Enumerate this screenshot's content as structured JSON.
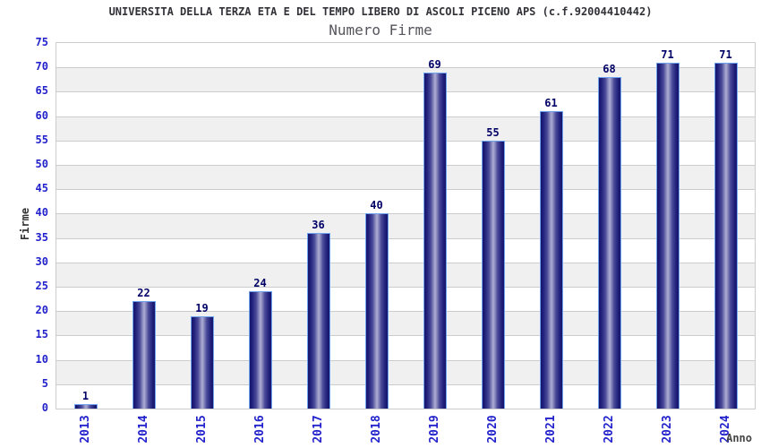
{
  "header": {
    "title": "UNIVERSITA DELLA TERZA ETA E DEL TEMPO LIBERO DI ASCOLI PICENO APS (c.f.92004410442)",
    "subtitle": "Numero Firme"
  },
  "chart_data": {
    "type": "bar",
    "title": "UNIVERSITA DELLA TERZA ETA E DEL TEMPO LIBERO DI ASCOLI PICENO APS (c.f.92004410442)",
    "subtitle": "Numero Firme",
    "xlabel": "Anno",
    "ylabel": "Firme",
    "categories": [
      "2013",
      "2014",
      "2015",
      "2016",
      "2017",
      "2018",
      "2019",
      "2020",
      "2021",
      "2022",
      "2023",
      "2024"
    ],
    "values": [
      1,
      22,
      19,
      24,
      36,
      40,
      69,
      55,
      61,
      68,
      71,
      71
    ],
    "ylim": [
      0,
      75
    ],
    "ytick_step": 5,
    "bar_value_labels_shown": true,
    "legend_position": "none",
    "grid": "horizontal-gridlines-with-alternating-bands",
    "x_tick_rotation_degrees": 90,
    "colors": {
      "background": "#ffffff",
      "band_alt": "#f0f0f0",
      "gridline": "#cccccc",
      "plot_border": "#cccccc",
      "tick_label": "#2222cc",
      "bar_value_label": "#000066",
      "bar_border": "#6da3ef",
      "bar_edge": "#16166b",
      "bar_center": "#a6a6cf",
      "title": "#313138",
      "subtitle": "#55555c",
      "axis_title": "#333333"
    }
  }
}
